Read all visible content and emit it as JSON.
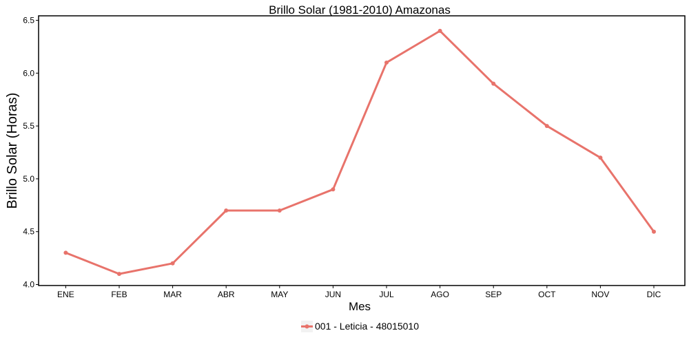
{
  "chart_data": {
    "type": "line",
    "title": "Brillo Solar (1981-2010)  Amazonas",
    "xlabel": "Mes",
    "ylabel": "Brillo Solar (Horas)",
    "categories": [
      "ENE",
      "FEB",
      "MAR",
      "ABR",
      "MAY",
      "JUN",
      "JUL",
      "AGO",
      "SEP",
      "OCT",
      "NOV",
      "DIC"
    ],
    "series": [
      {
        "name": "001 - Leticia - 48015010",
        "values": [
          4.3,
          4.1,
          4.2,
          4.7,
          4.7,
          4.9,
          6.1,
          6.4,
          5.9,
          5.5,
          5.2,
          4.5
        ],
        "color": "#e8736b"
      }
    ],
    "ylim": [
      4.0,
      6.5
    ],
    "yticks": [
      4.0,
      4.5,
      5.0,
      5.5,
      6.0,
      6.5
    ],
    "ytick_labels": [
      "4.0",
      "4.5",
      "5.0",
      "5.5",
      "6.0",
      "6.5"
    ],
    "grid": false,
    "legend_position": "bottom"
  }
}
